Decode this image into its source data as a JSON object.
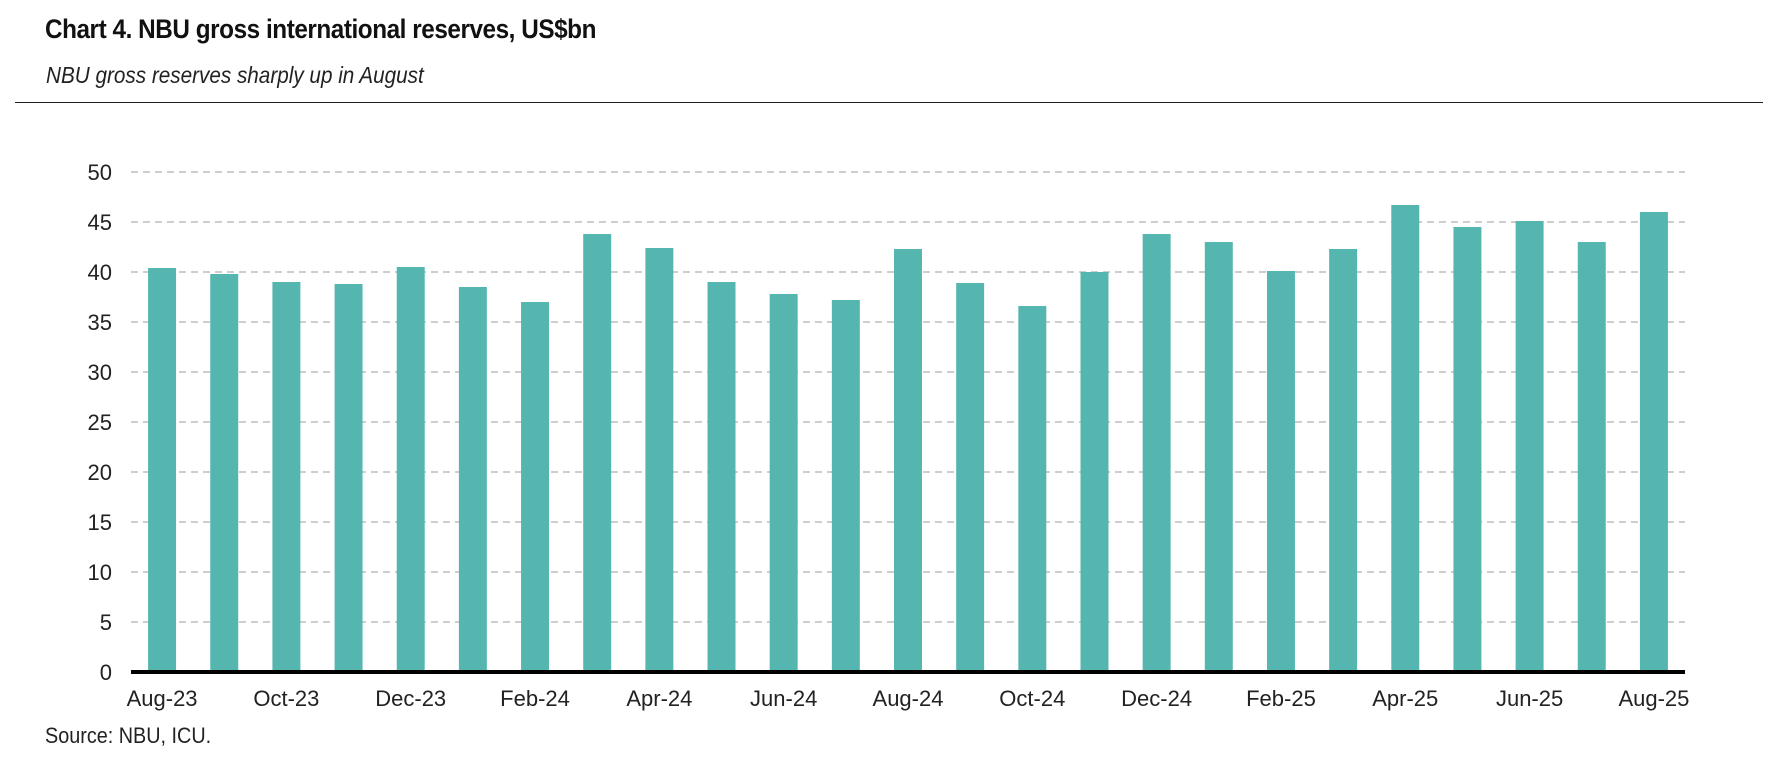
{
  "header": {
    "title": "Chart 4. NBU gross international reserves, US$bn",
    "subtitle": "NBU gross reserves sharply up in August"
  },
  "footer": {
    "source": "Source: NBU, ICU."
  },
  "chart_data": {
    "type": "bar",
    "categories": [
      "Aug-23",
      "Sep-23",
      "Oct-23",
      "Nov-23",
      "Dec-23",
      "Jan-24",
      "Feb-24",
      "Mar-24",
      "Apr-24",
      "May-24",
      "Jun-24",
      "Jul-24",
      "Aug-24",
      "Sep-24",
      "Oct-24",
      "Nov-24",
      "Dec-24",
      "Jan-25",
      "Feb-25",
      "Mar-25",
      "Apr-25",
      "May-25",
      "Jun-25",
      "Jul-25",
      "Aug-25"
    ],
    "x_tick_labels": [
      "Aug-23",
      "Oct-23",
      "Dec-23",
      "Feb-24",
      "Apr-24",
      "Jun-24",
      "Aug-24",
      "Oct-24",
      "Dec-24",
      "Feb-25",
      "Apr-25",
      "Jun-25",
      "Aug-25"
    ],
    "series": [
      {
        "values": [
          40.4,
          39.8,
          39.0,
          38.8,
          40.5,
          38.5,
          37.0,
          43.8,
          42.4,
          39.0,
          37.8,
          37.2,
          42.3,
          38.9,
          36.6,
          40.0,
          43.8,
          43.0,
          40.1,
          42.3,
          46.7,
          44.5,
          45.1,
          43.0,
          46.0
        ]
      }
    ],
    "y_ticks": [
      0,
      5,
      10,
      15,
      20,
      25,
      30,
      35,
      40,
      45,
      50
    ],
    "ylim": [
      0,
      50
    ],
    "grid": "horizontal dashed",
    "bar_color": "#55b6b0",
    "grid_color": "#bdbdbd",
    "axis_color": "#000000",
    "xlabel": "",
    "ylabel": ""
  }
}
